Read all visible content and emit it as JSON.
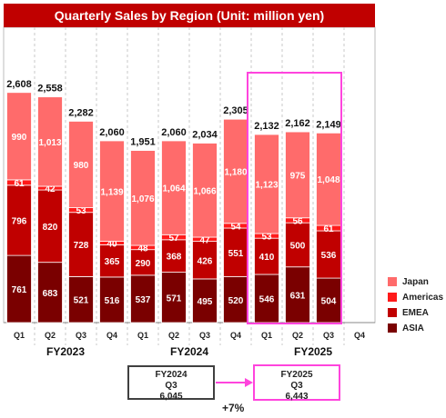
{
  "chart_data": {
    "type": "bar",
    "stacked": true,
    "title": "Quarterly Sales by Region (Unit: million yen)",
    "fiscal_years": [
      {
        "label": "FY2023",
        "quarters": [
          "Q1",
          "Q2",
          "Q3",
          "Q4"
        ]
      },
      {
        "label": "FY2024",
        "quarters": [
          "Q1",
          "Q2",
          "Q3",
          "Q4"
        ]
      },
      {
        "label": "FY2025",
        "quarters": [
          "Q1",
          "Q2",
          "Q3",
          "Q4"
        ]
      }
    ],
    "series": [
      {
        "name": "ASIA",
        "color": "#7a0000",
        "values": [
          761,
          683,
          521,
          516,
          537,
          571,
          495,
          520,
          546,
          631,
          504,
          null
        ]
      },
      {
        "name": "EMEA",
        "color": "#c00000",
        "values": [
          796,
          820,
          728,
          365,
          290,
          368,
          426,
          551,
          410,
          500,
          536,
          null
        ]
      },
      {
        "name": "Americas",
        "color": "#ff1a1a",
        "values": [
          61,
          42,
          53,
          40,
          48,
          57,
          47,
          54,
          53,
          56,
          61,
          null
        ]
      },
      {
        "name": "Japan",
        "color": "#ff6b6b",
        "values": [
          990,
          1013,
          980,
          1139,
          1076,
          1064,
          1066,
          1180,
          1123,
          975,
          1048,
          null
        ]
      }
    ],
    "totals": [
      "2,608",
      "2,558",
      "2,282",
      "2,060",
      "1,951",
      "2,060",
      "2,034",
      "2,305",
      "2,132",
      "2,162",
      "2,149",
      null
    ],
    "ylim": [
      0,
      2900
    ],
    "legend_position": "bottom-right",
    "legend_order": [
      "Japan",
      "Americas",
      "EMEA",
      "ASIA"
    ],
    "highlight_year": "FY2025"
  },
  "comparison": {
    "left": {
      "year": "FY2024",
      "quarter": "Q3",
      "value": "6,045"
    },
    "right": {
      "year": "FY2025",
      "quarter": "Q3",
      "value": "6,443"
    },
    "growth": "+7%"
  }
}
